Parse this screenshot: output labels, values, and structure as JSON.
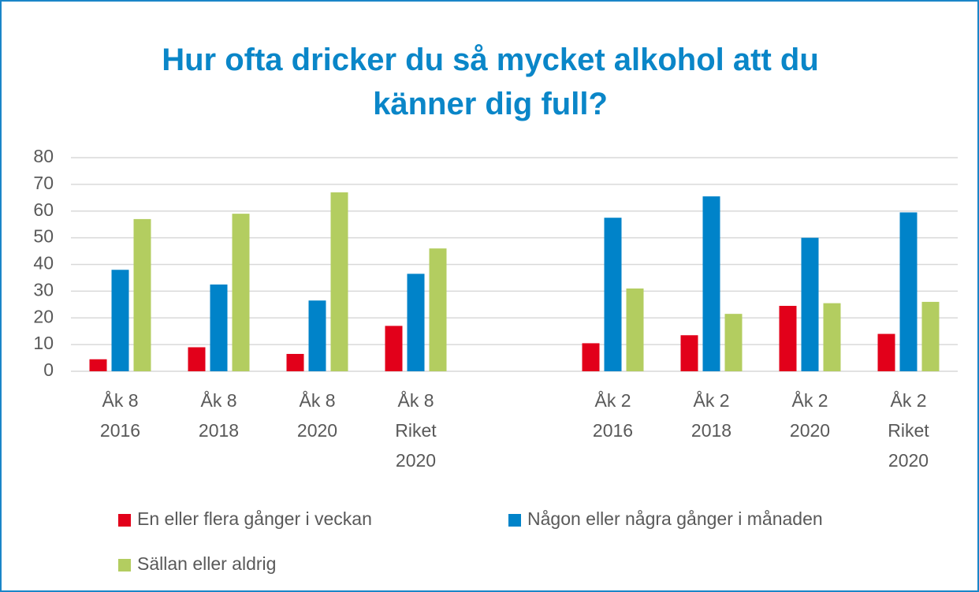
{
  "chart_data": {
    "type": "bar",
    "title": "Hur ofta dricker du så mycket alkohol att du känner dig full?",
    "categories": [
      "Åk 8\n2016",
      "Åk 8\n2018",
      "Åk 8\n2020",
      "Åk 8\nRiket\n2020",
      null,
      "Åk 2\n2016",
      "Åk 2\n2018",
      "Åk 2\n2020",
      "Åk 2\nRiket\n2020"
    ],
    "series": [
      {
        "name": "En eller flera gånger i veckan",
        "color": "#e2001a",
        "values": [
          4.5,
          9,
          6.5,
          17,
          null,
          10.5,
          13.5,
          24.5,
          14
        ]
      },
      {
        "name": "Någon eller några gånger i månaden",
        "color": "#0083c9",
        "values": [
          38,
          32.5,
          26.5,
          36.5,
          null,
          57.5,
          65.5,
          50,
          59.5
        ]
      },
      {
        "name": "Sällan eller aldrig",
        "color": "#b3cd60",
        "values": [
          57,
          59,
          67,
          46,
          null,
          31,
          21.5,
          25.5,
          26
        ]
      }
    ],
    "ylim": [
      0,
      80
    ],
    "yticks": [
      0,
      10,
      20,
      30,
      40,
      50,
      60,
      70,
      80
    ],
    "grid": true,
    "legend": "bottom"
  }
}
